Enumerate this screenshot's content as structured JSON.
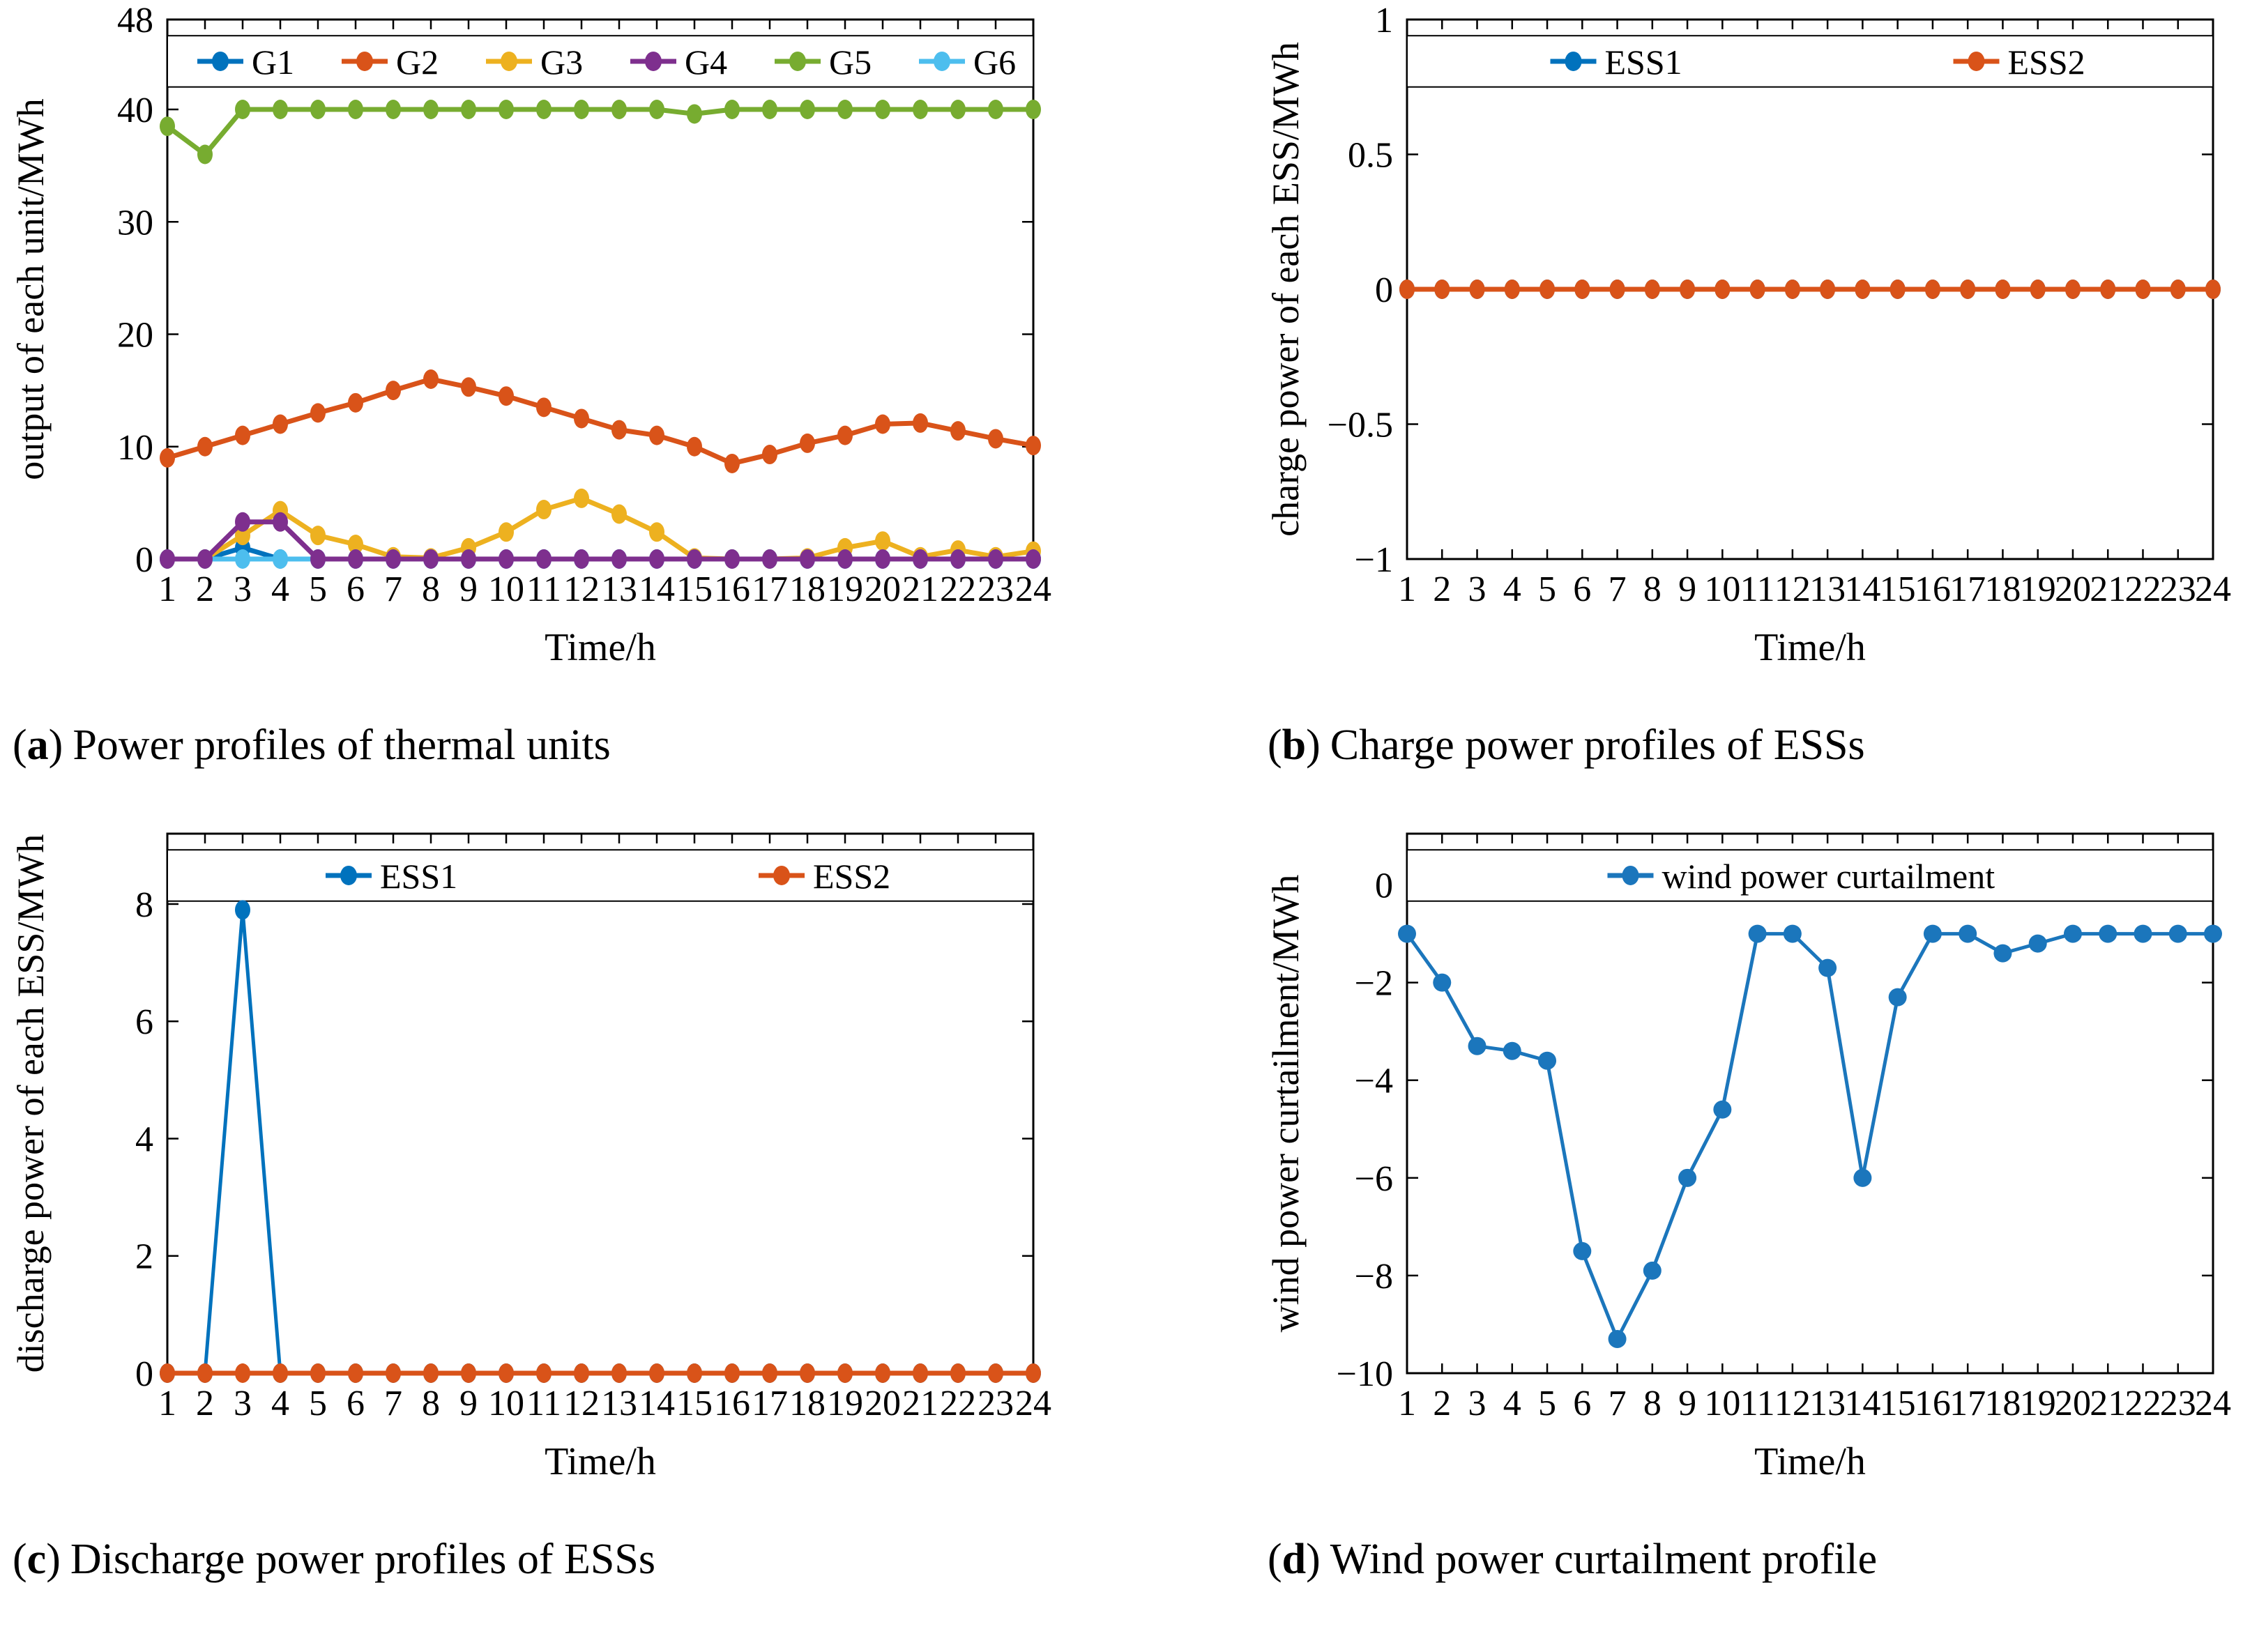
{
  "punct": {
    "open": "(",
    "close": ")"
  },
  "figure": {
    "background": "#ffffff",
    "captions": [
      {
        "letter": "a",
        "text": "Power profiles of thermal units"
      },
      {
        "letter": "b",
        "text": "Charge power profiles of ESSs"
      },
      {
        "letter": "c",
        "text": "Discharge power profiles of ESSs"
      },
      {
        "letter": "d",
        "text": "Wind power curtailment profile"
      }
    ]
  },
  "colors": {
    "blue": "#0072BD",
    "orange": "#D95319",
    "yellow": "#EDB120",
    "purple": "#7E2F8E",
    "green": "#77AC30",
    "cyan": "#4DBEEE",
    "axis": "#000000"
  },
  "chart_data": [
    {
      "id": "thermal-units",
      "type": "line",
      "title": "",
      "xlabel": "Time/h",
      "ylabel": "output of each unit/MWh",
      "xlim": [
        1,
        24
      ],
      "ylim": [
        0,
        48
      ],
      "grid": false,
      "legend": {
        "position": "top",
        "orientation": "horizontal",
        "boxed": true
      },
      "x": [
        1,
        2,
        3,
        4,
        5,
        6,
        7,
        8,
        9,
        10,
        11,
        12,
        13,
        14,
        15,
        16,
        17,
        18,
        19,
        20,
        21,
        22,
        23,
        24
      ],
      "xticks": [
        "1",
        "2",
        "3",
        "4",
        "5",
        "6",
        "7",
        "8",
        "9",
        "10",
        "11",
        "12",
        "13",
        "14",
        "15",
        "16",
        "17",
        "18",
        "19",
        "20",
        "21",
        "22",
        "23",
        "24"
      ],
      "yticks": [
        {
          "v": 0,
          "label": "0"
        },
        {
          "v": 10,
          "label": "10"
        },
        {
          "v": 20,
          "label": "20"
        },
        {
          "v": 30,
          "label": "30"
        },
        {
          "v": 40,
          "label": "40"
        },
        {
          "v": 48,
          "label": "48"
        }
      ],
      "series": [
        {
          "name": "G1",
          "color": "#0072BD",
          "z": 1,
          "values": [
            0,
            0,
            1,
            0,
            0,
            0,
            0,
            0,
            0,
            0,
            0,
            0,
            0,
            0,
            0,
            0,
            0,
            0,
            0,
            0,
            0,
            0,
            0,
            0
          ]
        },
        {
          "name": "G2",
          "color": "#D95319",
          "z": 2,
          "values": [
            9,
            10,
            11,
            12,
            13,
            13.9,
            15,
            16,
            15.3,
            14.5,
            13.5,
            12.5,
            11.5,
            11,
            10,
            8.5,
            9.3,
            10.3,
            11,
            12,
            12.1,
            11.4,
            10.7,
            10.1
          ]
        },
        {
          "name": "G3",
          "color": "#EDB120",
          "z": 3,
          "values": [
            0,
            0,
            2.1,
            4.3,
            2.1,
            1.3,
            0.2,
            0.1,
            1,
            2.4,
            4.4,
            5.4,
            4,
            2.4,
            0.1,
            0,
            0,
            0.1,
            1,
            1.6,
            0.2,
            0.8,
            0.2,
            0.7
          ]
        },
        {
          "name": "G4",
          "color": "#7E2F8E",
          "z": 5,
          "values": [
            0,
            0,
            3.3,
            3.3,
            0,
            0,
            0,
            0,
            0,
            0,
            0,
            0,
            0,
            0,
            0,
            0,
            0,
            0,
            0,
            0,
            0,
            0,
            0,
            0
          ]
        },
        {
          "name": "G5",
          "color": "#77AC30",
          "z": 6,
          "values": [
            38.5,
            36,
            40,
            40,
            40,
            40,
            40,
            40,
            40,
            40,
            40,
            40,
            40,
            40,
            39.6,
            40,
            40,
            40,
            40,
            40,
            40,
            40,
            40,
            40
          ]
        },
        {
          "name": "G6",
          "color": "#4DBEEE",
          "z": 4,
          "values": [
            0,
            0,
            0,
            0,
            0,
            0,
            0,
            0,
            0,
            0,
            0,
            0,
            0,
            0,
            0,
            0,
            0,
            0,
            0,
            0,
            0,
            0,
            0,
            0
          ]
        }
      ]
    },
    {
      "id": "ess-charge",
      "type": "line",
      "title": "",
      "xlabel": "Time/h",
      "ylabel": "charge power of each ESS/MWh",
      "xlim": [
        1,
        24
      ],
      "ylim": [
        -1,
        1
      ],
      "grid": false,
      "legend": {
        "position": "top",
        "orientation": "horizontal",
        "boxed": true
      },
      "x": [
        1,
        2,
        3,
        4,
        5,
        6,
        7,
        8,
        9,
        10,
        11,
        12,
        13,
        14,
        15,
        16,
        17,
        18,
        19,
        20,
        21,
        22,
        23,
        24
      ],
      "xticks": [
        "1",
        "2",
        "3",
        "4",
        "5",
        "6",
        "7",
        "8",
        "9",
        "10",
        "11",
        "12",
        "13",
        "14",
        "15",
        "16",
        "17",
        "18",
        "19",
        "20",
        "21",
        "22",
        "23",
        "24"
      ],
      "yticks": [
        {
          "v": -1,
          "label": "−1"
        },
        {
          "v": -0.5,
          "label": "−0.5"
        },
        {
          "v": 0,
          "label": "0"
        },
        {
          "v": 0.5,
          "label": "0.5"
        },
        {
          "v": 1,
          "label": "1"
        }
      ],
      "series": [
        {
          "name": "ESS1",
          "color": "#0072BD",
          "z": 1,
          "values": [
            0,
            0,
            0,
            0,
            0,
            0,
            0,
            0,
            0,
            0,
            0,
            0,
            0,
            0,
            0,
            0,
            0,
            0,
            0,
            0,
            0,
            0,
            0,
            0
          ]
        },
        {
          "name": "ESS2",
          "color": "#D95319",
          "z": 2,
          "values": [
            0,
            0,
            0,
            0,
            0,
            0,
            0,
            0,
            0,
            0,
            0,
            0,
            0,
            0,
            0,
            0,
            0,
            0,
            0,
            0,
            0,
            0,
            0,
            0
          ]
        }
      ]
    },
    {
      "id": "ess-discharge",
      "type": "line",
      "title": "",
      "xlabel": "Time/h",
      "ylabel": "discharge power of each ESS/MWh",
      "xlim": [
        1,
        24
      ],
      "ylim": [
        0,
        9.2
      ],
      "grid": false,
      "legend": {
        "position": "top",
        "orientation": "horizontal",
        "boxed": true
      },
      "x": [
        1,
        2,
        3,
        4,
        5,
        6,
        7,
        8,
        9,
        10,
        11,
        12,
        13,
        14,
        15,
        16,
        17,
        18,
        19,
        20,
        21,
        22,
        23,
        24
      ],
      "xticks": [
        "1",
        "2",
        "3",
        "4",
        "5",
        "6",
        "7",
        "8",
        "9",
        "10",
        "11",
        "12",
        "13",
        "14",
        "15",
        "16",
        "17",
        "18",
        "19",
        "20",
        "21",
        "22",
        "23",
        "24"
      ],
      "yticks": [
        {
          "v": 0,
          "label": "0"
        },
        {
          "v": 2,
          "label": "2"
        },
        {
          "v": 4,
          "label": "4"
        },
        {
          "v": 6,
          "label": "6"
        },
        {
          "v": 8,
          "label": "8"
        }
      ],
      "series": [
        {
          "name": "ESS1",
          "color": "#0072BD",
          "z": 1,
          "lw": 5,
          "values": [
            0,
            0,
            7.9,
            0,
            0,
            0,
            0,
            0,
            0,
            0,
            0,
            0,
            0,
            0,
            0,
            0,
            0,
            0,
            0,
            0,
            0,
            0,
            0,
            0
          ]
        },
        {
          "name": "ESS2",
          "color": "#D95319",
          "z": 2,
          "values": [
            0,
            0,
            0,
            0,
            0,
            0,
            0,
            0,
            0,
            0,
            0,
            0,
            0,
            0,
            0,
            0,
            0,
            0,
            0,
            0,
            0,
            0,
            0,
            0
          ]
        }
      ]
    },
    {
      "id": "wind-curtailment",
      "type": "line",
      "title": "",
      "xlabel": "Time/h",
      "ylabel": "wind power curtailment/MWh",
      "xlim": [
        1,
        24
      ],
      "ylim": [
        -10,
        1.05
      ],
      "grid": false,
      "legend": {
        "position": "top",
        "orientation": "horizontal",
        "boxed": true
      },
      "x": [
        1,
        2,
        3,
        4,
        5,
        6,
        7,
        8,
        9,
        10,
        11,
        12,
        13,
        14,
        15,
        16,
        17,
        18,
        19,
        20,
        21,
        22,
        23,
        24
      ],
      "xticks": [
        "1",
        "2",
        "3",
        "4",
        "5",
        "6",
        "7",
        "8",
        "9",
        "10",
        "11",
        "12",
        "13",
        "14",
        "15",
        "16",
        "17",
        "18",
        "19",
        "20",
        "21",
        "22",
        "23",
        "24"
      ],
      "yticks": [
        {
          "v": -10,
          "label": "−10"
        },
        {
          "v": -8,
          "label": "−8"
        },
        {
          "v": -6,
          "label": "−6"
        },
        {
          "v": -4,
          "label": "−4"
        },
        {
          "v": -2,
          "label": "−2"
        },
        {
          "v": 0,
          "label": "0"
        }
      ],
      "series": [
        {
          "name": "wind power curtailment",
          "color": "#1B76BC",
          "z": 1,
          "lw": 5,
          "round_marker": true,
          "values": [
            -1,
            -2,
            -3.3,
            -3.4,
            -3.6,
            -7.5,
            -9.3,
            -7.9,
            -6,
            -4.6,
            -1,
            -1,
            -1.7,
            -6,
            -2.3,
            -1,
            -1,
            -1.4,
            -1.2,
            -1,
            -1,
            -1,
            -1,
            -1
          ]
        }
      ]
    }
  ]
}
